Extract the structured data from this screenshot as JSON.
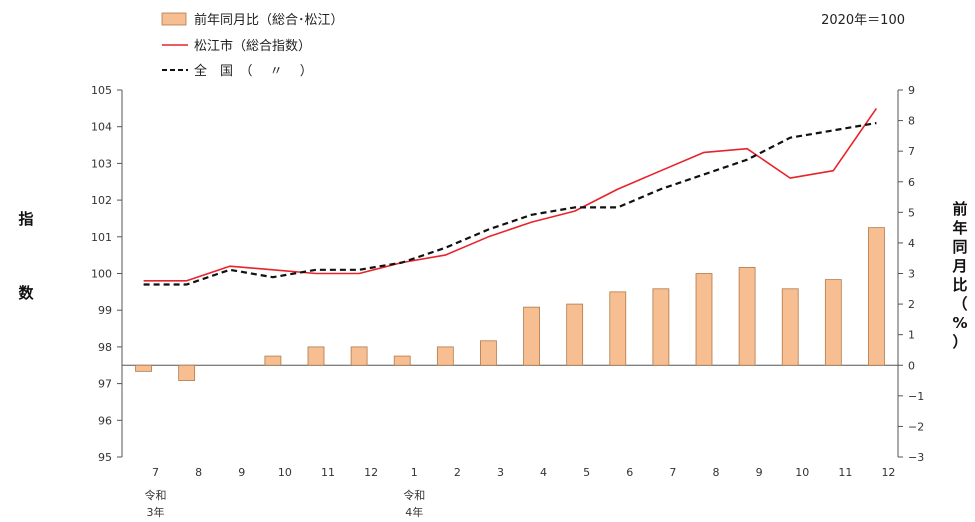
{
  "chart_data": {
    "type": "bar+line",
    "base_note": "2020年＝100",
    "left_axis_label": "指数",
    "right_axis_label": "前年同月比（%）",
    "categories": [
      "7",
      "8",
      "9",
      "10",
      "11",
      "12",
      "1",
      "2",
      "3",
      "4",
      "5",
      "6",
      "7",
      "8",
      "9",
      "10",
      "11",
      "12"
    ],
    "era_labels": [
      {
        "index": 0,
        "lines": [
          "令和",
          "3年"
        ]
      },
      {
        "index": 6,
        "lines": [
          "令和",
          "4年"
        ]
      }
    ],
    "left_axis": {
      "min": 95,
      "max": 105,
      "ticks": [
        "95",
        "96",
        "97",
        "98",
        "99",
        "100",
        "101",
        "102",
        "103",
        "104",
        "105"
      ]
    },
    "right_axis": {
      "min": -3,
      "max": 9,
      "ticks": [
        "−3",
        "−2",
        "−1",
        "0",
        "1",
        "2",
        "3",
        "4",
        "5",
        "6",
        "7",
        "8",
        "9"
      ]
    },
    "series": [
      {
        "name": "前年同月比（総合･松江）",
        "kind": "bar",
        "axis": "right",
        "color": "#f7be91",
        "values": [
          -0.2,
          -0.5,
          0.0,
          0.3,
          0.6,
          0.6,
          0.3,
          0.6,
          0.8,
          1.9,
          2.0,
          2.4,
          2.5,
          3.0,
          3.2,
          2.5,
          2.8,
          4.5
        ]
      },
      {
        "name": "松江市（総合指数）",
        "kind": "line",
        "axis": "left",
        "color": "#e8232b",
        "dash": false,
        "values": [
          99.8,
          99.8,
          100.2,
          100.1,
          100.0,
          100.0,
          100.3,
          100.5,
          101.0,
          101.4,
          101.7,
          102.3,
          102.8,
          103.3,
          103.4,
          102.6,
          102.8,
          104.5
        ]
      },
      {
        "name": "全　国　（　 〃　 ）",
        "kind": "line",
        "axis": "left",
        "color": "#111111",
        "dash": true,
        "values": [
          99.7,
          99.7,
          100.1,
          99.9,
          100.1,
          100.1,
          100.3,
          100.7,
          101.2,
          101.6,
          101.8,
          101.8,
          102.3,
          102.7,
          103.1,
          103.7,
          103.9,
          104.1
        ]
      }
    ]
  }
}
